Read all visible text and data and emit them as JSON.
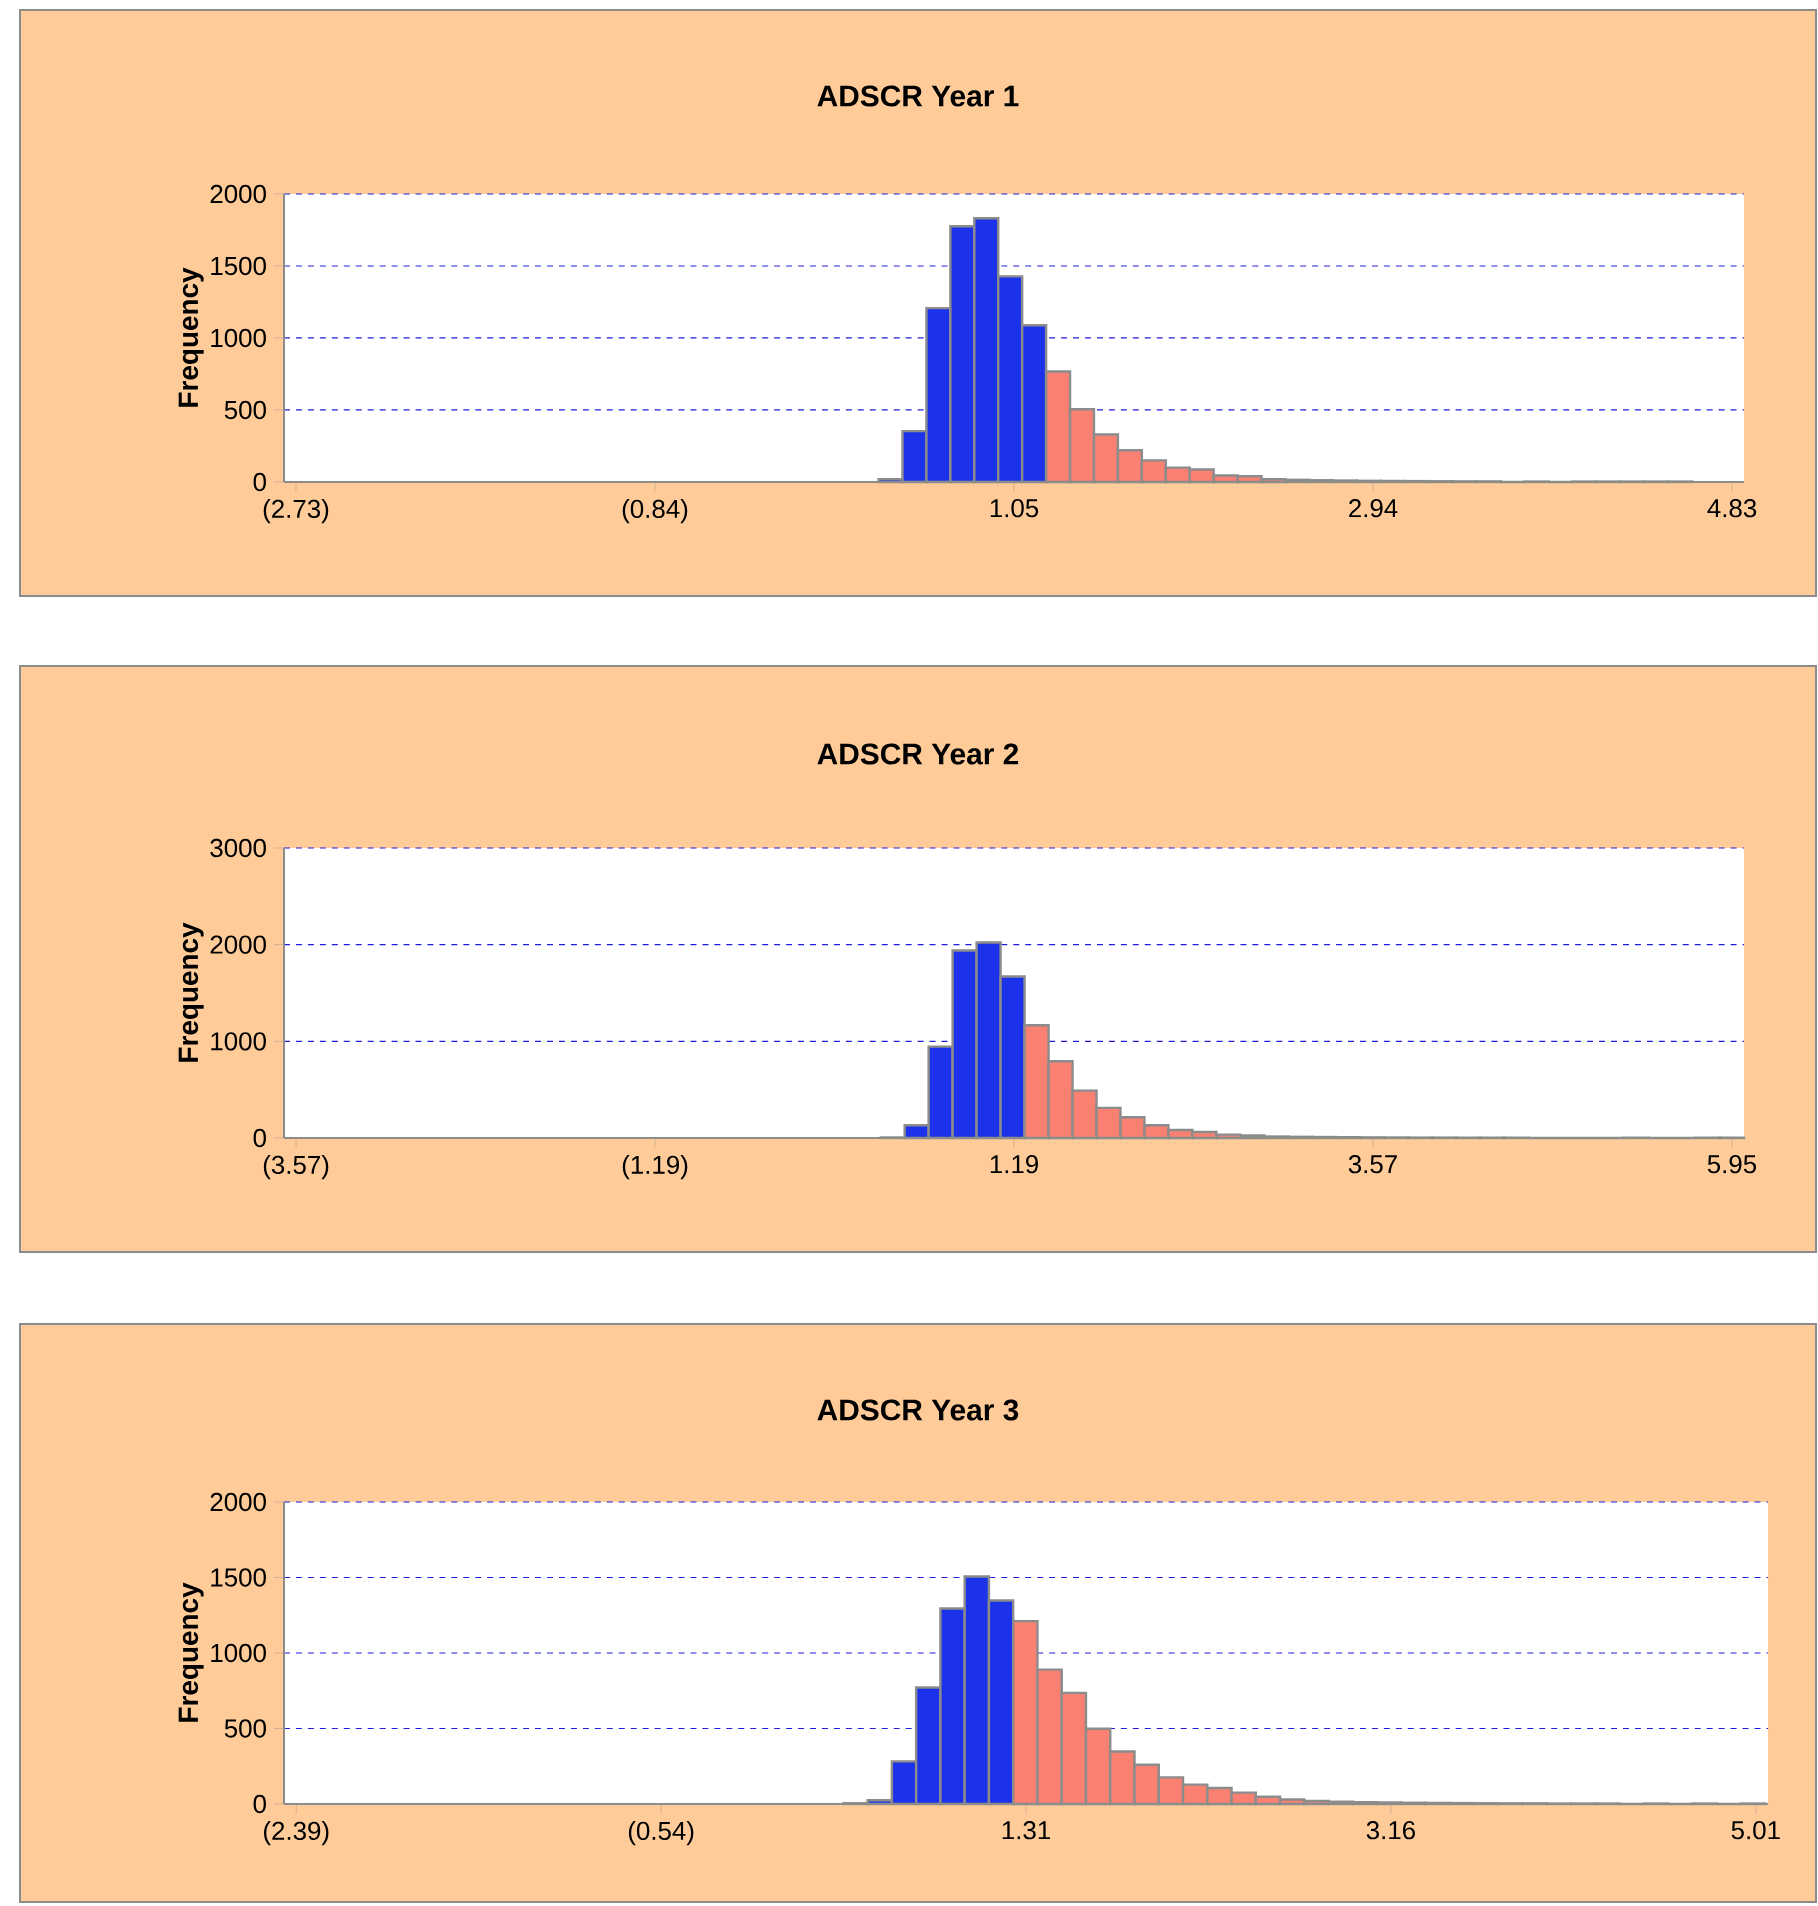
{
  "chart_data": [
    {
      "type": "histogram",
      "title": "ADSCR Year 1",
      "ylabel": "Frequency",
      "bins": [
        0.337,
        0.463,
        0.589,
        0.715,
        0.841,
        0.967,
        1.093,
        1.219,
        1.345,
        1.471,
        1.597,
        1.723,
        1.849,
        1.975,
        2.101,
        2.227,
        2.353,
        2.479,
        2.605,
        2.731,
        2.857,
        2.983,
        3.109,
        3.235,
        3.361,
        3.487,
        3.613,
        3.739,
        3.865,
        3.991,
        4.117,
        4.243,
        4.369,
        4.495,
        4.621
      ],
      "values": [
        20,
        353,
        1207,
        1776,
        1831,
        1428,
        1088,
        767,
        505,
        330,
        220,
        150,
        100,
        87,
        45,
        40,
        20,
        15,
        12,
        10,
        8,
        7,
        6,
        5,
        4,
        4,
        0,
        3,
        0,
        3,
        3,
        3,
        3,
        3
      ],
      "colors": [
        "#1b32ea",
        "#1b32ea",
        "#1b32ea",
        "#1b32ea",
        "#1b32ea",
        "#1b32ea",
        "#1b32ea",
        "#fa8072",
        "#fa8072",
        "#fa8072",
        "#fa8072",
        "#fa8072",
        "#fa8072",
        "#fa8072",
        "#fa8072",
        "#fa8072",
        "#fa8072",
        "#fa8072",
        "#fa8072",
        "#fa8072",
        "#fa8072",
        "#fa8072",
        "#fa8072",
        "#fa8072",
        "#fa8072",
        "#fa8072",
        "#fa8072",
        "#fa8072",
        "#fa8072",
        "#fa8072",
        "#fa8072",
        "#fa8072",
        "#fa8072",
        "#fa8072"
      ],
      "xlim": [
        -2.793,
        4.893
      ],
      "ylim": [
        0,
        2000
      ],
      "xticks": [
        {
          "value": -2.73,
          "label": "(2.73)"
        },
        {
          "value": -0.84,
          "label": "(0.84)"
        },
        1.05,
        2.94,
        4.83
      ],
      "yticks": [
        0,
        500,
        1000,
        1500,
        2000
      ],
      "grid": "y"
    },
    {
      "type": "histogram",
      "title": "ADSCR Year 2",
      "ylabel": "Frequency",
      "bins": [
        0.306,
        0.465,
        0.624,
        0.783,
        0.942,
        1.101,
        1.26,
        1.419,
        1.578,
        1.737,
        1.896,
        2.055,
        2.214,
        2.373,
        2.532,
        2.691,
        2.85,
        3.009,
        3.168,
        3.327,
        3.486,
        3.645,
        3.804,
        3.963,
        4.122,
        4.281,
        4.44,
        4.599,
        4.758,
        4.917,
        5.076,
        5.235,
        5.394,
        5.553,
        5.712,
        5.871,
        6.03
      ],
      "values": [
        5,
        131,
        945,
        1939,
        2022,
        1670,
        1166,
        794,
        490,
        311,
        214,
        131,
        83,
        62,
        35,
        25,
        15,
        12,
        10,
        8,
        6,
        5,
        4,
        4,
        3,
        3,
        3,
        0,
        0,
        0,
        0,
        3,
        0,
        0,
        3,
        3
      ],
      "colors": [
        "#1b32ea",
        "#1b32ea",
        "#1b32ea",
        "#1b32ea",
        "#1b32ea",
        "#1b32ea",
        "#fa8072",
        "#fa8072",
        "#fa8072",
        "#fa8072",
        "#fa8072",
        "#fa8072",
        "#fa8072",
        "#fa8072",
        "#fa8072",
        "#fa8072",
        "#fa8072",
        "#fa8072",
        "#fa8072",
        "#fa8072",
        "#fa8072",
        "#fa8072",
        "#fa8072",
        "#fa8072",
        "#fa8072",
        "#fa8072",
        "#fa8072",
        "#fa8072",
        "#fa8072",
        "#fa8072",
        "#fa8072",
        "#fa8072",
        "#fa8072",
        "#fa8072",
        "#fa8072",
        "#fa8072"
      ],
      "xlim": [
        -3.65,
        6.03
      ],
      "ylim": [
        0,
        3000
      ],
      "xticks": [
        {
          "value": -3.57,
          "label": "(3.57)"
        },
        {
          "value": -1.19,
          "label": "(1.19)"
        },
        1.19,
        3.57,
        5.95
      ],
      "yticks": [
        0,
        1000,
        2000,
        3000
      ],
      "grid": "y"
    },
    {
      "type": "histogram",
      "title": "ADSCR Year 3",
      "ylabel": "Frequency",
      "bins": [
        0.384,
        0.507,
        0.63,
        0.753,
        0.876,
        0.999,
        1.122,
        1.245,
        1.368,
        1.491,
        1.614,
        1.737,
        1.86,
        1.983,
        2.106,
        2.229,
        2.352,
        2.475,
        2.598,
        2.721,
        2.844,
        2.967,
        3.09,
        3.213,
        3.336,
        3.459,
        3.582,
        3.705,
        3.828,
        3.951,
        4.074,
        4.197,
        4.32,
        4.443,
        4.566,
        4.689,
        4.812,
        4.935,
        5.058
      ],
      "values": [
        5,
        25,
        282,
        771,
        1295,
        1507,
        1348,
        1211,
        890,
        736,
        498,
        348,
        260,
        176,
        128,
        106,
        75,
        48,
        30,
        20,
        15,
        12,
        10,
        8,
        7,
        6,
        5,
        4,
        4,
        3,
        3,
        3,
        0,
        3,
        0,
        3,
        0,
        3
      ],
      "colors": [
        "#1b32ea",
        "#1b32ea",
        "#1b32ea",
        "#1b32ea",
        "#1b32ea",
        "#1b32ea",
        "#1b32ea",
        "#fa8072",
        "#fa8072",
        "#fa8072",
        "#fa8072",
        "#fa8072",
        "#fa8072",
        "#fa8072",
        "#fa8072",
        "#fa8072",
        "#fa8072",
        "#fa8072",
        "#fa8072",
        "#fa8072",
        "#fa8072",
        "#fa8072",
        "#fa8072",
        "#fa8072",
        "#fa8072",
        "#fa8072",
        "#fa8072",
        "#fa8072",
        "#fa8072",
        "#fa8072",
        "#fa8072",
        "#fa8072",
        "#fa8072",
        "#fa8072",
        "#fa8072",
        "#fa8072",
        "#fa8072",
        "#fa8072"
      ],
      "xlim": [
        -2.452,
        5.072
      ],
      "ylim": [
        0,
        2000
      ],
      "xticks": [
        {
          "value": -2.39,
          "label": "(2.39)"
        },
        {
          "value": -0.54,
          "label": "(0.54)"
        },
        1.31,
        3.16,
        5.01
      ],
      "yticks": [
        0,
        500,
        1000,
        1500,
        2000
      ],
      "grid": "y"
    }
  ]
}
